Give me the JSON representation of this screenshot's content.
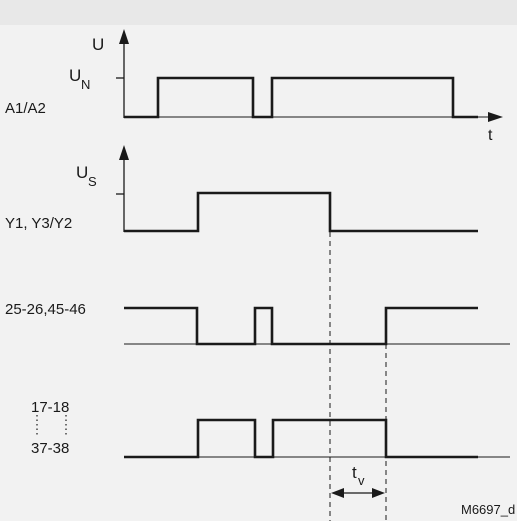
{
  "diagram": {
    "figure_id": "M6697_d",
    "colors": {
      "background": "#f2f2f2",
      "header_band": "#e8e8e8",
      "signal": "#1a1a1a",
      "baseline": "#1a1a1a",
      "dashed": "#1a1a1a"
    },
    "axis_labels": {
      "u": "U",
      "un_main": "U",
      "un_sub": "N",
      "t": "t",
      "us_main": "U",
      "us_sub": "S"
    },
    "rows": [
      {
        "id": "a1a2",
        "label": "A1/A2"
      },
      {
        "id": "y1y3y2",
        "label": "Y1, Y3/Y2"
      },
      {
        "id": "nc",
        "label": "25-26,45-46"
      },
      {
        "id": "no",
        "label_top": "17-18",
        "label_bottom": "37-38"
      }
    ],
    "tv_label": {
      "main": "t",
      "sub": "v"
    }
  }
}
